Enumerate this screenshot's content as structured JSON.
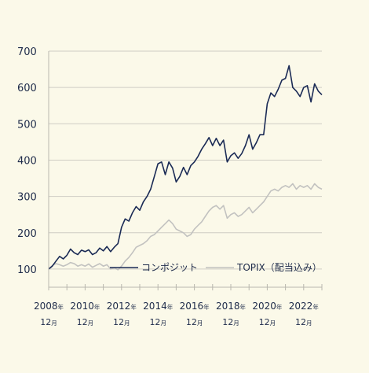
{
  "chart_data": {
    "type": "line",
    "ylim": [
      50,
      700
    ],
    "yticks": [
      "100",
      "200",
      "300",
      "400",
      "500",
      "600",
      "700"
    ],
    "xlim": [
      2008.0,
      2023.0
    ],
    "xticks": [
      {
        "year": "2008",
        "year_suffix": "年",
        "month": "12",
        "month_suffix": "月",
        "x": 2008.0
      },
      {
        "year": "2010",
        "year_suffix": "年",
        "month": "12",
        "month_suffix": "月",
        "x": 2010.0
      },
      {
        "year": "2012",
        "year_suffix": "年",
        "month": "12",
        "month_suffix": "月",
        "x": 2012.0
      },
      {
        "year": "2014",
        "year_suffix": "年",
        "month": "12",
        "month_suffix": "月",
        "x": 2014.0
      },
      {
        "year": "2016",
        "year_suffix": "年",
        "month": "12",
        "month_suffix": "月",
        "x": 2016.0
      },
      {
        "year": "2018",
        "year_suffix": "年",
        "month": "12",
        "month_suffix": "月",
        "x": 2018.0
      },
      {
        "year": "2020",
        "year_suffix": "年",
        "month": "12",
        "month_suffix": "月",
        "x": 2020.0
      },
      {
        "year": "2022",
        "year_suffix": "年",
        "month": "12",
        "month_suffix": "月",
        "x": 2022.0
      }
    ],
    "grid": true,
    "legend_position": "bottom-right",
    "series": [
      {
        "name": "コンポジット",
        "color": "#1a2a55",
        "x": [
          2008.0,
          2008.2,
          2008.4,
          2008.6,
          2008.8,
          2009.0,
          2009.2,
          2009.4,
          2009.6,
          2009.8,
          2010.0,
          2010.2,
          2010.4,
          2010.6,
          2010.8,
          2011.0,
          2011.2,
          2011.4,
          2011.6,
          2011.8,
          2012.0,
          2012.2,
          2012.4,
          2012.6,
          2012.8,
          2013.0,
          2013.2,
          2013.4,
          2013.6,
          2013.8,
          2014.0,
          2014.2,
          2014.4,
          2014.6,
          2014.8,
          2015.0,
          2015.2,
          2015.4,
          2015.6,
          2015.8,
          2016.0,
          2016.2,
          2016.4,
          2016.6,
          2016.8,
          2017.0,
          2017.2,
          2017.4,
          2017.6,
          2017.8,
          2018.0,
          2018.2,
          2018.4,
          2018.6,
          2018.8,
          2019.0,
          2019.2,
          2019.4,
          2019.6,
          2019.8,
          2020.0,
          2020.2,
          2020.4,
          2020.6,
          2020.8,
          2021.0,
          2021.2,
          2021.4,
          2021.6,
          2021.8,
          2022.0,
          2022.2,
          2022.4,
          2022.6,
          2022.8,
          2023.0
        ],
        "values": [
          100,
          108,
          122,
          135,
          128,
          138,
          155,
          145,
          140,
          152,
          148,
          153,
          140,
          145,
          158,
          150,
          162,
          148,
          160,
          170,
          215,
          238,
          232,
          255,
          272,
          262,
          285,
          300,
          320,
          355,
          390,
          395,
          360,
          395,
          378,
          340,
          355,
          380,
          360,
          385,
          395,
          410,
          430,
          445,
          462,
          440,
          460,
          440,
          455,
          395,
          412,
          420,
          405,
          418,
          440,
          470,
          430,
          448,
          470,
          470,
          555,
          585,
          575,
          595,
          620,
          625,
          660,
          600,
          590,
          575,
          600,
          605,
          560,
          610,
          590,
          580
        ]
      },
      {
        "name": "TOPIX（配当込み）",
        "color": "#c2c2c0",
        "x": [
          2008.0,
          2008.2,
          2008.4,
          2008.6,
          2008.8,
          2009.0,
          2009.2,
          2009.4,
          2009.6,
          2009.8,
          2010.0,
          2010.2,
          2010.4,
          2010.6,
          2010.8,
          2011.0,
          2011.2,
          2011.4,
          2011.6,
          2011.8,
          2012.0,
          2012.2,
          2012.4,
          2012.6,
          2012.8,
          2013.0,
          2013.2,
          2013.4,
          2013.6,
          2013.8,
          2014.0,
          2014.2,
          2014.4,
          2014.6,
          2014.8,
          2015.0,
          2015.2,
          2015.4,
          2015.6,
          2015.8,
          2016.0,
          2016.2,
          2016.4,
          2016.6,
          2016.8,
          2017.0,
          2017.2,
          2017.4,
          2017.6,
          2017.8,
          2018.0,
          2018.2,
          2018.4,
          2018.6,
          2018.8,
          2019.0,
          2019.2,
          2019.4,
          2019.6,
          2019.8,
          2020.0,
          2020.2,
          2020.4,
          2020.6,
          2020.8,
          2021.0,
          2021.2,
          2021.4,
          2021.6,
          2021.8,
          2022.0,
          2022.2,
          2022.4,
          2022.6,
          2022.8,
          2023.0
        ],
        "values": [
          100,
          110,
          115,
          112,
          108,
          112,
          118,
          115,
          108,
          112,
          108,
          114,
          105,
          110,
          115,
          108,
          112,
          100,
          104,
          98,
          108,
          122,
          132,
          145,
          160,
          165,
          170,
          178,
          190,
          195,
          205,
          215,
          225,
          235,
          225,
          210,
          205,
          200,
          190,
          195,
          210,
          220,
          230,
          245,
          260,
          270,
          275,
          265,
          275,
          240,
          250,
          255,
          245,
          250,
          260,
          270,
          255,
          265,
          275,
          285,
          300,
          315,
          320,
          315,
          325,
          330,
          325,
          335,
          320,
          330,
          325,
          330,
          320,
          335,
          325,
          320
        ]
      }
    ]
  }
}
